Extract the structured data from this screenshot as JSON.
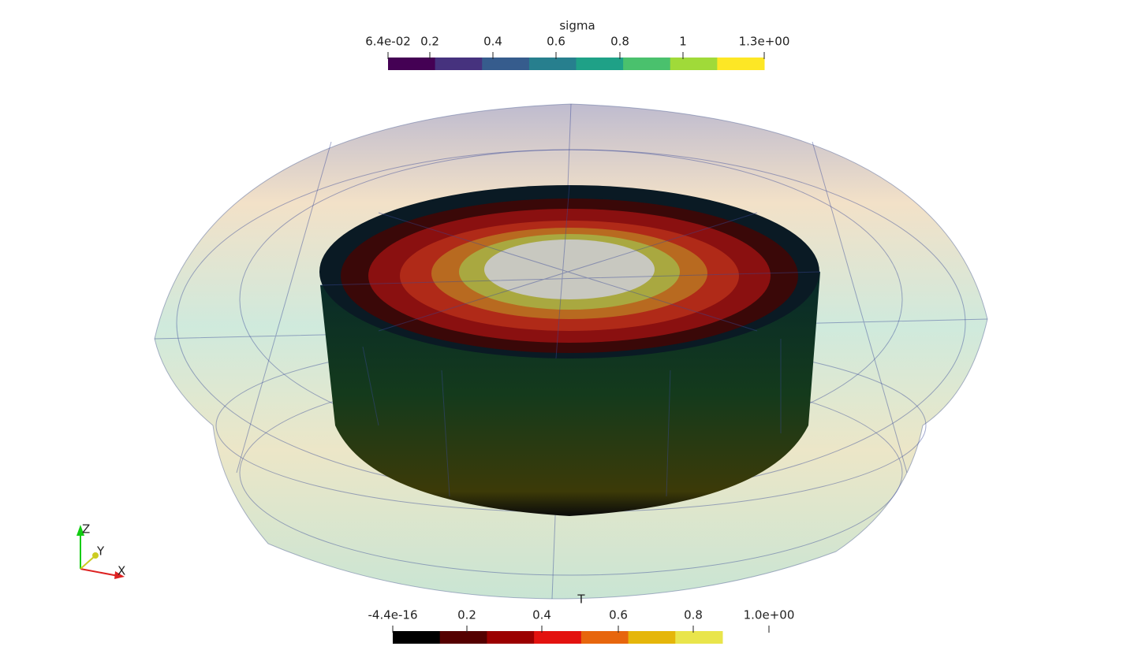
{
  "colorbars": [
    {
      "title": "sigma",
      "tick_labels": [
        "6.4e-02",
        "0.2",
        "0.4",
        "0.6",
        "0.8",
        "1",
        "1.3e+00"
      ],
      "colors": [
        "#440154",
        "#46327e",
        "#365c8d",
        "#277f8e",
        "#1fa187",
        "#4ac16d",
        "#a0da39",
        "#fde725"
      ]
    },
    {
      "title": "T",
      "tick_labels": [
        "-4.4e-16",
        "0.2",
        "0.4",
        "0.6",
        "0.8",
        "1.0e+00"
      ],
      "colors": [
        "#000000",
        "#550000",
        "#9b0000",
        "#e3120f",
        "#e7660d",
        "#e5b60a",
        "#e9e54b"
      ]
    }
  ],
  "axes_triad": {
    "x": "X",
    "y": "Y",
    "z": "Z"
  }
}
